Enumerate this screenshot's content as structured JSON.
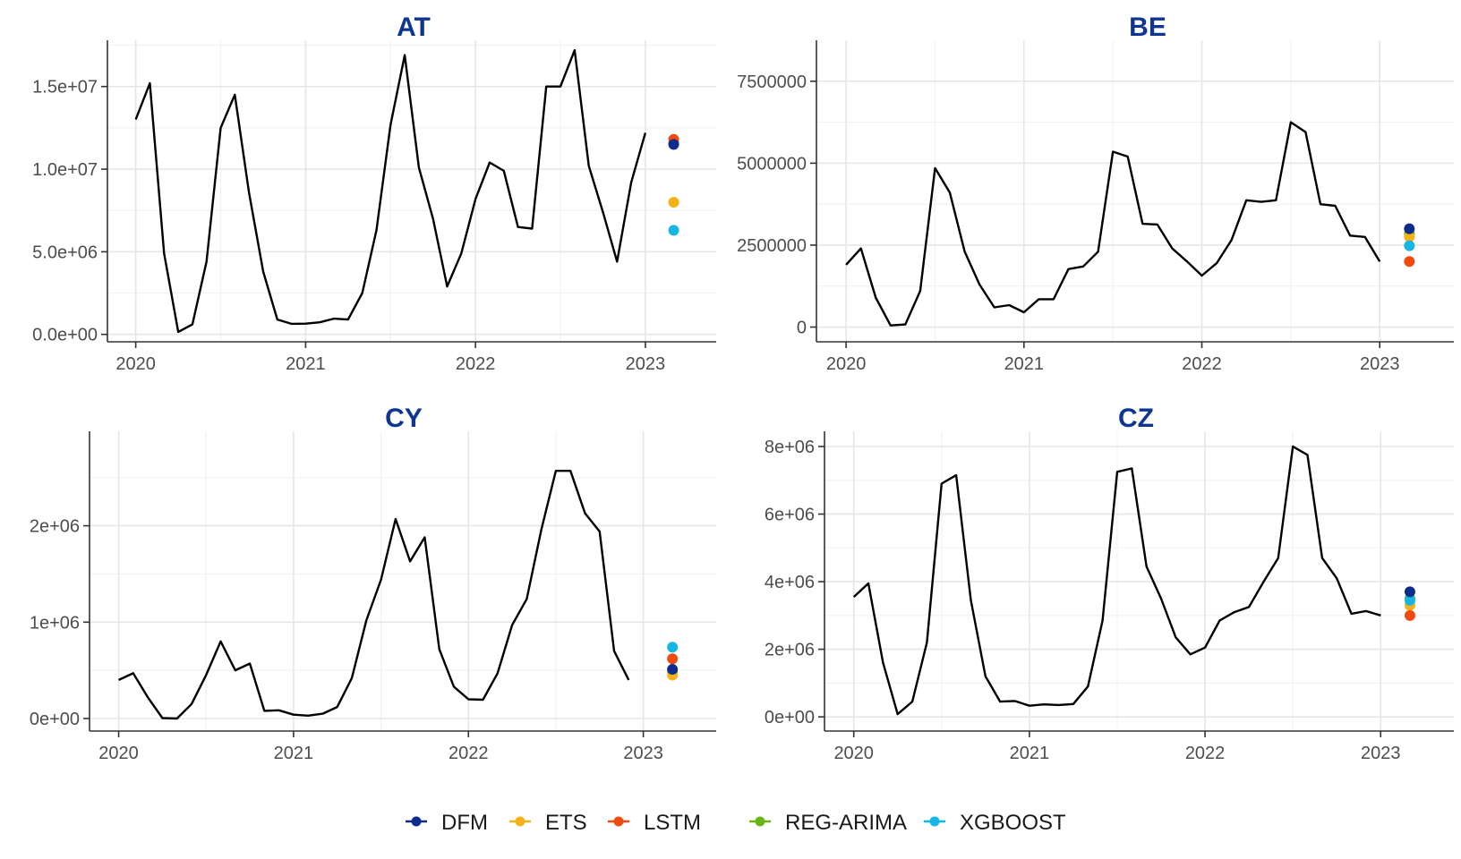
{
  "chart_data": [
    {
      "type": "line",
      "title": "AT",
      "x_dates": [
        "2020-01",
        "2020-02",
        "2020-03",
        "2020-04",
        "2020-05",
        "2020-06",
        "2020-07",
        "2020-08",
        "2020-09",
        "2020-10",
        "2020-11",
        "2020-12",
        "2021-01",
        "2021-02",
        "2021-03",
        "2021-04",
        "2021-05",
        "2021-06",
        "2021-07",
        "2021-08",
        "2021-09",
        "2021-10",
        "2021-11",
        "2021-12",
        "2022-01",
        "2022-02",
        "2022-03",
        "2022-04",
        "2022-05",
        "2022-06",
        "2022-07",
        "2022-08",
        "2022-09",
        "2022-10",
        "2022-11",
        "2022-12",
        "2023-01"
      ],
      "values": [
        13000000,
        15200000,
        4900000,
        150000,
        600000,
        4400000,
        12500000,
        14500000,
        8600000,
        3800000,
        900000,
        640000,
        650000,
        730000,
        950000,
        900000,
        2500000,
        6300000,
        12700000,
        16900000,
        10100000,
        7000000,
        2900000,
        4900000,
        8200000,
        10400000,
        9900000,
        6500000,
        6400000,
        15000000,
        15000000,
        17200000,
        10200000,
        7400000,
        4400000,
        9200000,
        12200000
      ],
      "forecast_date": "2023-03",
      "forecasts": {
        "DFM": 11500000,
        "ETS": 8000000,
        "LSTM": 11800000,
        "REG-ARIMA": 11600000,
        "XGBOOST": 6300000
      },
      "xlim": [
        "2019-11",
        "2023-06"
      ],
      "ylim": [
        -450000,
        17800000
      ],
      "yticks": [
        0,
        5000000,
        10000000,
        15000000
      ],
      "ytick_labels": [
        "0.0e+00",
        "5.0e+06",
        "1.0e+07",
        "1.5e+07"
      ],
      "xticks": [
        "2020-01",
        "2021-01",
        "2022-01",
        "2023-01"
      ],
      "xtick_labels": [
        "2020",
        "2021",
        "2022",
        "2023"
      ],
      "grid": true
    },
    {
      "type": "line",
      "title": "BE",
      "x_dates": [
        "2020-01",
        "2020-02",
        "2020-03",
        "2020-04",
        "2020-05",
        "2020-06",
        "2020-07",
        "2020-08",
        "2020-09",
        "2020-10",
        "2020-11",
        "2020-12",
        "2021-01",
        "2021-02",
        "2021-03",
        "2021-04",
        "2021-05",
        "2021-06",
        "2021-07",
        "2021-08",
        "2021-09",
        "2021-10",
        "2021-11",
        "2021-12",
        "2022-01",
        "2022-02",
        "2022-03",
        "2022-04",
        "2022-05",
        "2022-06",
        "2022-07",
        "2022-08",
        "2022-09",
        "2022-10",
        "2022-11",
        "2022-12",
        "2023-01"
      ],
      "values": [
        1900000,
        2400000,
        900000,
        50000,
        80000,
        1100000,
        4850000,
        4100000,
        2300000,
        1300000,
        600000,
        670000,
        450000,
        850000,
        850000,
        1770000,
        1850000,
        2300000,
        5350000,
        5200000,
        3150000,
        3130000,
        2400000,
        2000000,
        1570000,
        1950000,
        2650000,
        3870000,
        3820000,
        3870000,
        6250000,
        5950000,
        3750000,
        3700000,
        2790000,
        2750000,
        2000000
      ],
      "forecast_date": "2023-03",
      "forecasts": {
        "DFM": 3000000,
        "ETS": 2750000,
        "LSTM": 2000000,
        "REG-ARIMA": 2850000,
        "XGBOOST": 2480000
      },
      "xlim": [
        "2019-11",
        "2023-06"
      ],
      "ylim": [
        -450000,
        8750000
      ],
      "yticks": [
        0,
        2500000,
        5000000,
        7500000
      ],
      "ytick_labels": [
        "0",
        "2500000",
        "5000000",
        "7500000"
      ],
      "xticks": [
        "2020-01",
        "2021-01",
        "2022-01",
        "2023-01"
      ],
      "xtick_labels": [
        "2020",
        "2021",
        "2022",
        "2023"
      ],
      "grid": true
    },
    {
      "type": "line",
      "title": "CY",
      "x_dates": [
        "2020-01",
        "2020-02",
        "2020-03",
        "2020-04",
        "2020-05",
        "2020-06",
        "2020-07",
        "2020-08",
        "2020-09",
        "2020-10",
        "2020-11",
        "2020-12",
        "2021-01",
        "2021-02",
        "2021-03",
        "2021-04",
        "2021-05",
        "2021-06",
        "2021-07",
        "2021-08",
        "2021-09",
        "2021-10",
        "2021-11",
        "2021-12",
        "2022-01",
        "2022-02",
        "2022-03",
        "2022-04",
        "2022-05",
        "2022-06",
        "2022-07",
        "2022-08",
        "2022-09",
        "2022-10",
        "2022-11",
        "2022-12"
      ],
      "values": [
        400000,
        470000,
        220000,
        5000,
        0,
        150000,
        450000,
        800000,
        500000,
        570000,
        80000,
        85000,
        40000,
        30000,
        50000,
        120000,
        420000,
        1020000,
        1440000,
        2070000,
        1630000,
        1880000,
        720000,
        330000,
        200000,
        195000,
        470000,
        970000,
        1240000,
        1960000,
        2570000,
        2570000,
        2130000,
        1940000,
        700000,
        400000
      ],
      "forecast_date": "2023-03",
      "forecasts": {
        "DFM": 510000,
        "ETS": 450000,
        "LSTM": 620000,
        "REG-ARIMA": 480000,
        "XGBOOST": 740000
      },
      "xlim": [
        "2019-11",
        "2023-06"
      ],
      "ylim": [
        -130000,
        2980000
      ],
      "yticks": [
        0,
        1000000,
        2000000
      ],
      "ytick_labels": [
        "0e+00",
        "1e+06",
        "2e+06"
      ],
      "xticks": [
        "2020-01",
        "2021-01",
        "2022-01",
        "2023-01"
      ],
      "xtick_labels": [
        "2020",
        "2021",
        "2022",
        "2023"
      ],
      "grid": true
    },
    {
      "type": "line",
      "title": "CZ",
      "x_dates": [
        "2020-01",
        "2020-02",
        "2020-03",
        "2020-04",
        "2020-05",
        "2020-06",
        "2020-07",
        "2020-08",
        "2020-09",
        "2020-10",
        "2020-11",
        "2020-12",
        "2021-01",
        "2021-02",
        "2021-03",
        "2021-04",
        "2021-05",
        "2021-06",
        "2021-07",
        "2021-08",
        "2021-09",
        "2021-10",
        "2021-11",
        "2021-12",
        "2022-01",
        "2022-02",
        "2022-03",
        "2022-04",
        "2022-05",
        "2022-06",
        "2022-07",
        "2022-08",
        "2022-09",
        "2022-10",
        "2022-11",
        "2022-12",
        "2023-01"
      ],
      "values": [
        3550000,
        3950000,
        1600000,
        80000,
        450000,
        2200000,
        6900000,
        7150000,
        3450000,
        1200000,
        450000,
        470000,
        330000,
        370000,
        350000,
        380000,
        900000,
        2850000,
        7250000,
        7350000,
        4450000,
        3500000,
        2350000,
        1850000,
        2050000,
        2850000,
        3100000,
        3250000,
        4000000,
        4700000,
        8000000,
        7750000,
        4700000,
        4100000,
        3050000,
        3130000,
        3000000
      ],
      "forecast_date": "2023-03",
      "forecasts": {
        "DFM": 3700000,
        "ETS": 3300000,
        "LSTM": 3000000,
        "REG-ARIMA": 3500000,
        "XGBOOST": 3450000
      },
      "xlim": [
        "2019-11",
        "2023-06"
      ],
      "ylim": [
        -420000,
        8450000
      ],
      "yticks": [
        0,
        2000000,
        4000000,
        6000000,
        8000000
      ],
      "ytick_labels": [
        "0e+00",
        "2e+06",
        "4e+06",
        "6e+06",
        "8e+06"
      ],
      "xticks": [
        "2020-01",
        "2021-01",
        "2022-01",
        "2023-01"
      ],
      "xtick_labels": [
        "2020",
        "2021",
        "2022",
        "2023"
      ],
      "grid": true
    }
  ],
  "legend": {
    "position": "bottom",
    "items": [
      {
        "label": "DFM",
        "color": "#0d2c8c"
      },
      {
        "label": "ETS",
        "color": "#f5b216"
      },
      {
        "label": "LSTM",
        "color": "#f04a0c"
      },
      {
        "label": "REG-ARIMA",
        "color": "#6ab417"
      },
      {
        "label": "XGBOOST",
        "color": "#15b5e4"
      }
    ]
  },
  "colors": {
    "line": "#000000",
    "title": "#0d3591",
    "grid": "#ebebeb",
    "axis": "#333333"
  }
}
